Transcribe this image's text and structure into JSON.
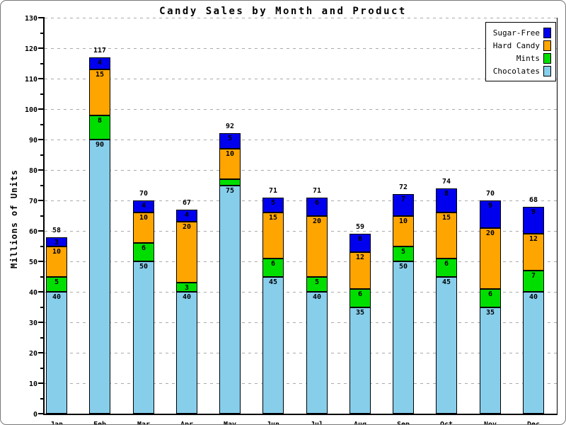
{
  "chart_data": {
    "type": "bar",
    "stacked": true,
    "title": "Candy Sales by Month and Product",
    "xlabel": "",
    "ylabel": "Millions of Units",
    "ylim": [
      0,
      130
    ],
    "ytick_interval": 10,
    "ytick_minor_interval": 5,
    "grid": "horizontal-dashed",
    "grid_color": "#aaaaaa",
    "background": "#ffffff",
    "legend_position": "top-right",
    "legend_entries": [
      "Sugar-Free",
      "Hard Candy",
      "Mints",
      "Chocolates"
    ],
    "categories": [
      "Jan",
      "Feb",
      "Mar",
      "Apr",
      "May",
      "Jun",
      "Jul",
      "Aug",
      "Sep",
      "Oct",
      "Nov",
      "Dec"
    ],
    "series": [
      {
        "name": "Chocolates",
        "color": "#87CEEB",
        "values": [
          40,
          90,
          50,
          40,
          75,
          45,
          40,
          35,
          50,
          45,
          35,
          40
        ]
      },
      {
        "name": "Mints",
        "color": "#00DE00",
        "values": [
          5,
          8,
          6,
          3,
          2,
          6,
          5,
          6,
          5,
          6,
          6,
          7
        ]
      },
      {
        "name": "Hard Candy",
        "color": "#FFA500",
        "values": [
          10,
          15,
          10,
          20,
          10,
          15,
          20,
          12,
          10,
          15,
          20,
          12
        ]
      },
      {
        "name": "Sugar-Free",
        "color": "#0000EE",
        "values": [
          3,
          4,
          4,
          4,
          5,
          5,
          6,
          6,
          7,
          8,
          9,
          9
        ]
      }
    ],
    "totals": [
      58,
      117,
      70,
      67,
      92,
      71,
      71,
      59,
      72,
      74,
      70,
      68
    ]
  }
}
